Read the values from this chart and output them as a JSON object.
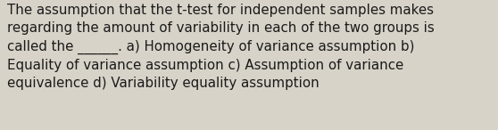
{
  "line1": "The assumption that the t-test for independent samples makes",
  "line2": "regarding the amount of variability in each of the two groups is",
  "line3": "called the ______. a) Homogeneity of variance assumption b)",
  "line4": "Equality of variance assumption c) Assumption of variance",
  "line5": "equivalence d) Variability equality assumption",
  "background_color": "#d8d3c8",
  "text_color": "#1a1a1a",
  "font_size": 10.8,
  "fig_width": 5.58,
  "fig_height": 1.46,
  "dpi": 100
}
